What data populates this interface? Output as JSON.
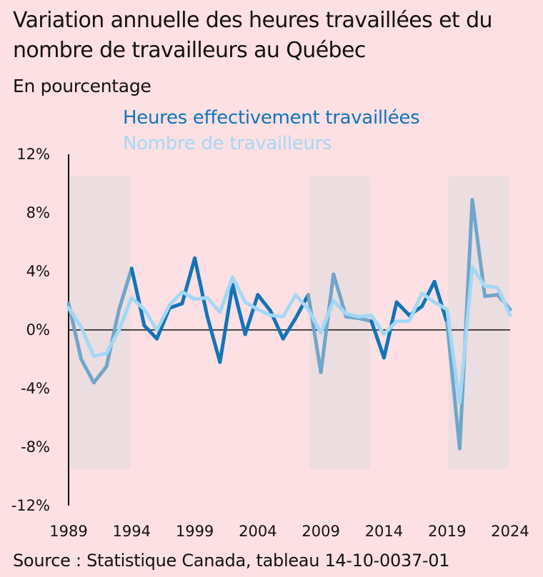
{
  "chart_data": {
    "type": "line",
    "title": "Variation annuelle des heures travaillées et du nombre de travailleurs au Québec",
    "subtitle": "En pourcentage",
    "source": "Source : Statistique Canada, tableau 14-10-0037-01",
    "x": [
      1989,
      1990,
      1991,
      1992,
      1993,
      1994,
      1995,
      1996,
      1997,
      1998,
      1999,
      2000,
      2001,
      2002,
      2003,
      2004,
      2005,
      2006,
      2007,
      2008,
      2009,
      2010,
      2011,
      2012,
      2013,
      2014,
      2015,
      2016,
      2017,
      2018,
      2019,
      2020,
      2021,
      2022,
      2023,
      2024
    ],
    "x_tick_labels": [
      "1989",
      "1994",
      "1999",
      "2004",
      "2009",
      "2014",
      "2019",
      "2024"
    ],
    "x_tick_values": [
      1989,
      1994,
      1999,
      2004,
      2009,
      2014,
      2019,
      2024
    ],
    "y_tick_labels": [
      "12%",
      "8%",
      "4%",
      "0%",
      "-4%",
      "-8%",
      "-12%"
    ],
    "y_tick_values": [
      12,
      8,
      4,
      0,
      -4,
      -8,
      -12
    ],
    "ylim": [
      -12,
      12
    ],
    "xlim": [
      1989,
      2024
    ],
    "grid": false,
    "legend_placement": "top-left",
    "recession_bands": [
      [
        1989,
        1994
      ],
      [
        2008,
        2013
      ],
      [
        2019,
        2024
      ]
    ],
    "series": [
      {
        "name": "Heures effectivement travaillées",
        "color": "#1273b8",
        "color_in_band": "#6fa6c9",
        "values": [
          1.8,
          -2.0,
          -3.6,
          -2.5,
          1.4,
          4.2,
          0.3,
          -0.6,
          1.5,
          1.8,
          4.9,
          0.9,
          -2.2,
          3.1,
          -0.3,
          2.4,
          1.3,
          -0.6,
          0.8,
          2.4,
          -2.9,
          3.8,
          0.9,
          0.8,
          0.6,
          -1.9,
          1.9,
          1.0,
          1.6,
          3.3,
          0.5,
          -8.1,
          8.9,
          2.3,
          2.4,
          1.4
        ]
      },
      {
        "name": "Nombre de travailleurs",
        "color": "#a3d8f5",
        "values": [
          1.5,
          0.2,
          -1.8,
          -1.6,
          0.0,
          2.2,
          1.4,
          0.0,
          1.7,
          2.6,
          2.1,
          2.2,
          1.2,
          3.6,
          1.9,
          1.4,
          1.0,
          0.9,
          2.4,
          1.4,
          -0.2,
          2.0,
          1.1,
          0.9,
          1.0,
          -0.3,
          0.6,
          0.6,
          2.5,
          1.9,
          1.4,
          -5.0,
          4.3,
          3.0,
          2.9,
          1.0
        ]
      }
    ]
  }
}
